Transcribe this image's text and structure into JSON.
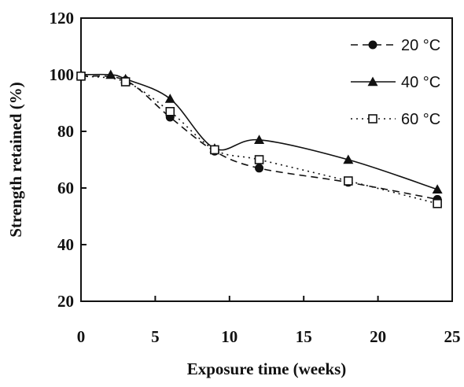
{
  "chart_data": {
    "type": "line",
    "xlabel": "Exposure time (weeks)",
    "ylabel": "Strength retained (%)",
    "xlim": [
      0,
      25
    ],
    "ylim": [
      20,
      120
    ],
    "x_ticks": [
      "0",
      "5",
      "10",
      "15",
      "20",
      "25"
    ],
    "y_ticks": [
      "20",
      "40",
      "60",
      "80",
      "100",
      "120"
    ],
    "grid": false,
    "legend": "top-right",
    "series": [
      {
        "name": "20 °C",
        "marker": "filled-circle",
        "line_style": "dashed",
        "color": "#111111",
        "x": [
          0,
          3,
          6,
          9,
          12,
          18,
          24
        ],
        "y": [
          99.5,
          98,
          85,
          73,
          67,
          62,
          56
        ]
      },
      {
        "name": "40 °C",
        "marker": "filled-triangle",
        "line_style": "solid",
        "color": "#111111",
        "x": [
          0,
          2,
          3,
          6,
          9,
          12,
          18,
          24
        ],
        "y": [
          100,
          100,
          98.5,
          91.5,
          74,
          77,
          70,
          59.5
        ]
      },
      {
        "name": "60 °C",
        "marker": "open-square",
        "line_style": "dotted",
        "color": "#111111",
        "x": [
          0,
          3,
          6,
          9,
          12,
          18,
          24
        ],
        "y": [
          99.5,
          97.5,
          87,
          73.5,
          70,
          62.5,
          54.5
        ]
      }
    ]
  }
}
